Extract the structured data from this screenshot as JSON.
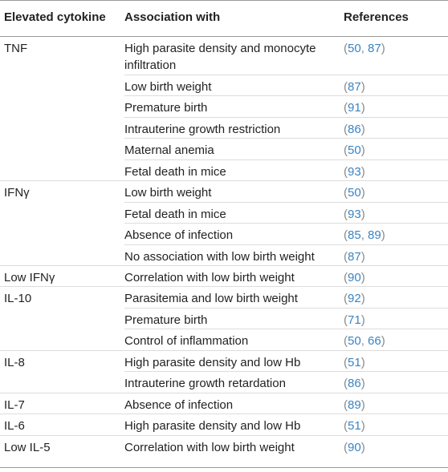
{
  "headers": {
    "cytokine": "Elevated cytokine",
    "association": "Association with",
    "references": "References"
  },
  "rows": [
    {
      "cytokine": "TNF",
      "association": "High parasite density and monocyte infiltration",
      "refs": [
        "50",
        "87"
      ]
    },
    {
      "cytokine": "",
      "association": "Low birth weight",
      "refs": [
        "87"
      ]
    },
    {
      "cytokine": "",
      "association": "Premature birth",
      "refs": [
        "91"
      ]
    },
    {
      "cytokine": "",
      "association": "Intrauterine growth restriction",
      "refs": [
        "86"
      ]
    },
    {
      "cytokine": "",
      "association": "Maternal anemia",
      "refs": [
        "50"
      ]
    },
    {
      "cytokine": "",
      "association": "Fetal death in mice",
      "refs": [
        "93"
      ]
    },
    {
      "cytokine": "IFNγ",
      "association": "Low birth weight",
      "refs": [
        "50"
      ]
    },
    {
      "cytokine": "",
      "association": "Fetal death in mice",
      "refs": [
        "93"
      ]
    },
    {
      "cytokine": "",
      "association": "Absence of infection",
      "refs": [
        "85",
        "89"
      ]
    },
    {
      "cytokine": "",
      "association": "No association with low birth weight",
      "refs": [
        "87"
      ]
    },
    {
      "cytokine": "Low IFNγ",
      "association": "Correlation with low birth weight",
      "refs": [
        "90"
      ]
    },
    {
      "cytokine": "IL-10",
      "association": "Parasitemia and low birth weight",
      "refs": [
        "92"
      ]
    },
    {
      "cytokine": "",
      "association": "Premature birth",
      "refs": [
        "71"
      ]
    },
    {
      "cytokine": "",
      "association": "Control of inflammation",
      "refs": [
        "50",
        "66"
      ]
    },
    {
      "cytokine": "IL-8",
      "association": "High parasite density and low Hb",
      "refs": [
        "51"
      ]
    },
    {
      "cytokine": "",
      "association": "Intrauterine growth retardation",
      "refs": [
        "86"
      ]
    },
    {
      "cytokine": "IL-7",
      "association": "Absence of infection",
      "refs": [
        "89"
      ]
    },
    {
      "cytokine": "IL-6",
      "association": "High parasite density and low Hb",
      "refs": [
        "51"
      ]
    },
    {
      "cytokine": "Low IL-5",
      "association": "Correlation with low birth weight",
      "refs": [
        "90"
      ]
    }
  ],
  "colors": {
    "reference_link": "#3a84c2",
    "rule": "#9a9a9a",
    "row_divider": "#dcdcdc"
  }
}
